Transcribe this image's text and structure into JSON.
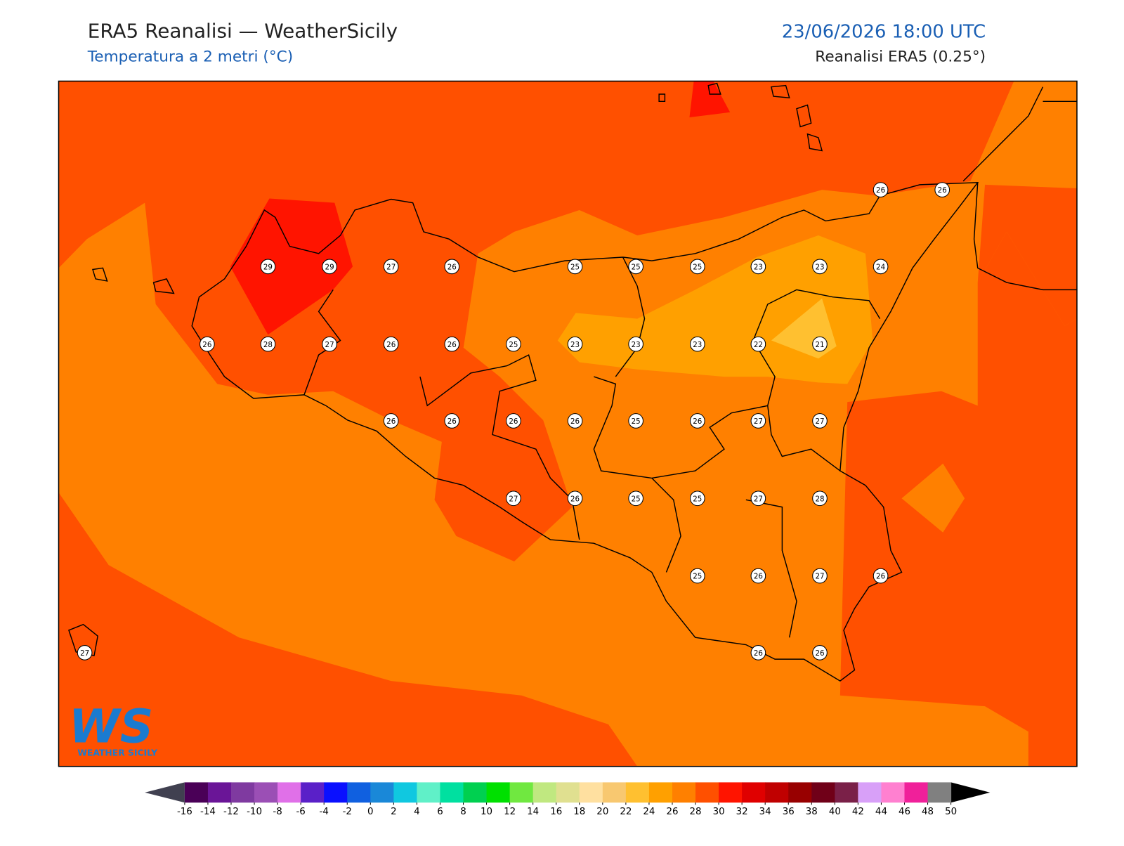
{
  "header": {
    "title": "ERA5 Reanalisi — WeatherSicily",
    "subtitle": "Temperatura a 2 metri (°C)",
    "date": "23/06/2026 18:00 UTC",
    "source": "Reanalisi ERA5 (0.25°)"
  },
  "logo": {
    "mark": "WS",
    "name": "WEATHER SICILY"
  },
  "stations": [
    26,
    26,
    29,
    29,
    27,
    26,
    25,
    25,
    25,
    23,
    23,
    24,
    26,
    28,
    27,
    26,
    26,
    25,
    23,
    23,
    23,
    22,
    21,
    26,
    26,
    26,
    26,
    25,
    26,
    27,
    27,
    27,
    26,
    25,
    25,
    27,
    28,
    25,
    26,
    27,
    26,
    27,
    26,
    26
  ],
  "colorbar": {
    "ticks": [
      -16,
      -14,
      -12,
      -10,
      -8,
      -6,
      -4,
      -2,
      0,
      2,
      4,
      6,
      8,
      10,
      12,
      14,
      16,
      18,
      20,
      22,
      24,
      26,
      28,
      30,
      32,
      34,
      36,
      38,
      40,
      42,
      44,
      46,
      48,
      50
    ],
    "colors": [
      "#4a0057",
      "#6a1597",
      "#7f3aa0",
      "#9b4fb5",
      "#e070e8",
      "#5a20c8",
      "#0a10ff",
      "#1060e0",
      "#1a88d8",
      "#10c8e0",
      "#60f0c8",
      "#00e0a0",
      "#00d050",
      "#00e000",
      "#70e840",
      "#c0e880",
      "#e0e090",
      "#ffe0a0",
      "#f8c870",
      "#ffc030",
      "#ffa000",
      "#ff8000",
      "#ff5000",
      "#ff1400",
      "#e00000",
      "#c00000",
      "#980000",
      "#700018",
      "#7a2048",
      "#d8a0f8",
      "#ff80d0",
      "#f0209a",
      "#808080",
      "#404040"
    ]
  }
}
